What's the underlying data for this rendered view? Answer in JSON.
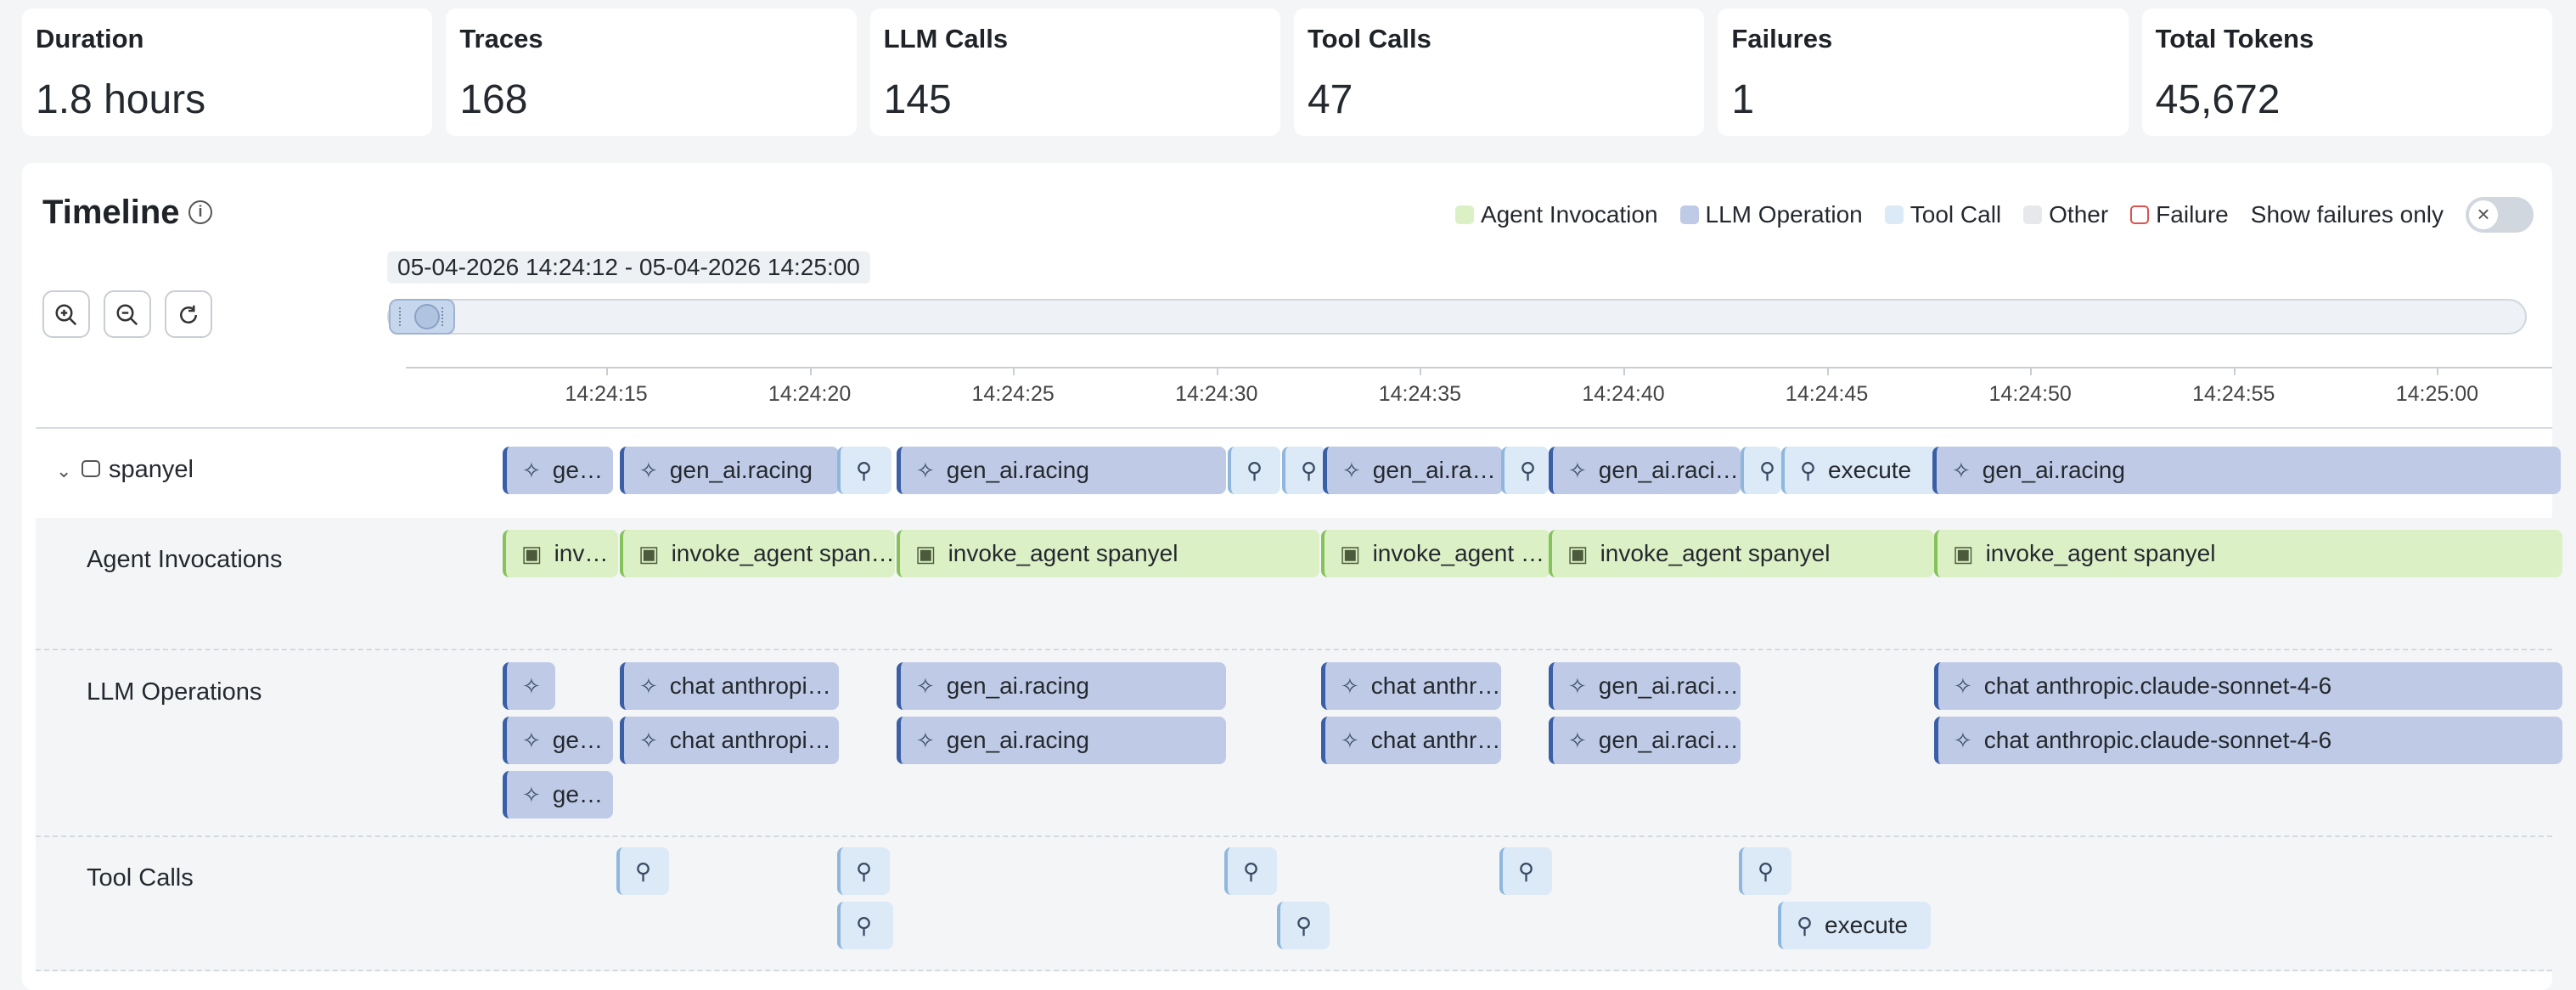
{
  "stats": [
    {
      "label": "Duration",
      "value": "1.8 hours"
    },
    {
      "label": "Traces",
      "value": "168"
    },
    {
      "label": "LLM Calls",
      "value": "145"
    },
    {
      "label": "Tool Calls",
      "value": "47"
    },
    {
      "label": "Failures",
      "value": "1"
    },
    {
      "label": "Total Tokens",
      "value": "45,672"
    }
  ],
  "timeline": {
    "title": "Timeline",
    "info_icon": "info-icon",
    "legend": [
      {
        "label": "Agent Invocation",
        "color": "#dcf0c6"
      },
      {
        "label": "LLM Operation",
        "color": "#bfcbe6"
      },
      {
        "label": "Tool Call",
        "color": "#dce9f6"
      },
      {
        "label": "Other",
        "color": "#e6e8eb"
      },
      {
        "label": "Failure",
        "color": "#ffffff",
        "border": "#d9534f"
      }
    ],
    "toggle_label": "Show failures only",
    "toggle_on": false,
    "range_label": "05-04-2026 14:24:12 - 05-04-2026 14:25:00",
    "zoom_in_icon": "zoom-in-icon",
    "zoom_out_icon": "zoom-out-icon",
    "reset_icon": "reset-icon",
    "ticks": [
      "14:24:15",
      "14:24:20",
      "14:24:25",
      "14:24:30",
      "14:24:35",
      "14:24:40",
      "14:24:45",
      "14:24:50",
      "14:24:55",
      "14:25:00"
    ],
    "rows": {
      "root": "spanyel",
      "agents": "Agent Invocations",
      "llm": "LLM Operations",
      "tools": "Tool Calls"
    },
    "spans": {
      "root": [
        {
          "kind": "llm",
          "text": "gen_ai.racing"
        },
        {
          "kind": "llm",
          "text": "gen_ai.racing"
        },
        {
          "kind": "tool",
          "text": ""
        },
        {
          "kind": "llm",
          "text": "gen_ai.racing"
        },
        {
          "kind": "tool",
          "text": ""
        },
        {
          "kind": "tool",
          "text": ""
        },
        {
          "kind": "llm",
          "text": "gen_ai.racing"
        },
        {
          "kind": "tool",
          "text": ""
        },
        {
          "kind": "llm",
          "text": "gen_ai.racing"
        },
        {
          "kind": "tool",
          "text": ""
        },
        {
          "kind": "tool",
          "text": "execute"
        },
        {
          "kind": "llm",
          "text": "gen_ai.racing"
        }
      ],
      "agents": [
        {
          "text": "invoke_agent spanyel"
        },
        {
          "text": "invoke_agent spanyel"
        },
        {
          "text": "invoke_agent spanyel"
        },
        {
          "text": "invoke_agent spanyel"
        },
        {
          "text": "invoke_agent spanyel"
        },
        {
          "text": "invoke_agent spanyel"
        }
      ],
      "llm": [
        {
          "text": ""
        },
        {
          "text": "chat anthropic.claude-sonnet-4-6"
        },
        {
          "text": "gen_ai.racing"
        },
        {
          "text": "chat anthropic.claude-sonnet-4-6"
        },
        {
          "text": "gen_ai.racing"
        },
        {
          "text": "chat anthropic.claude-sonnet-4-6"
        },
        {
          "text": "gen_ai.racing"
        },
        {
          "text": "chat anthropic.claude-sonnet-4-6"
        },
        {
          "text": "gen_ai.racing"
        },
        {
          "text": "chat anthropic.claude-sonnet-4-6"
        },
        {
          "text": "gen_ai.racing"
        },
        {
          "text": "chat anthropic.claude-sonnet-4-6"
        },
        {
          "text": "gen_ai.racing"
        },
        {
          "text": "gen_ai.racing"
        }
      ],
      "tools": [
        {
          "text": ""
        },
        {
          "text": ""
        },
        {
          "text": ""
        },
        {
          "text": ""
        },
        {
          "text": ""
        },
        {
          "text": ""
        },
        {
          "text": ""
        },
        {
          "text": "execute"
        }
      ]
    }
  }
}
